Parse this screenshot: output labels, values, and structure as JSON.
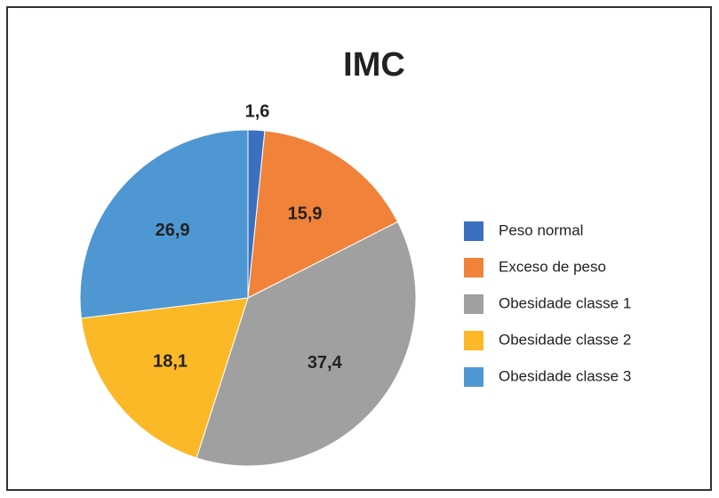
{
  "chart_data": {
    "type": "pie",
    "title": "IMC",
    "categories": [
      "Peso normal",
      "Exceso de peso",
      "Obesidade classe 1",
      "Obesidade classe 2",
      "Obesidade classe 3"
    ],
    "values": [
      1.6,
      15.9,
      37.4,
      18.1,
      26.9
    ],
    "value_labels": [
      "1,6",
      "15,9",
      "37,4",
      "18,1",
      "26,9"
    ],
    "colors": [
      "#3a70bf",
      "#f0823a",
      "#a0a0a0",
      "#fbb927",
      "#4f97d3"
    ],
    "legend": "right"
  }
}
